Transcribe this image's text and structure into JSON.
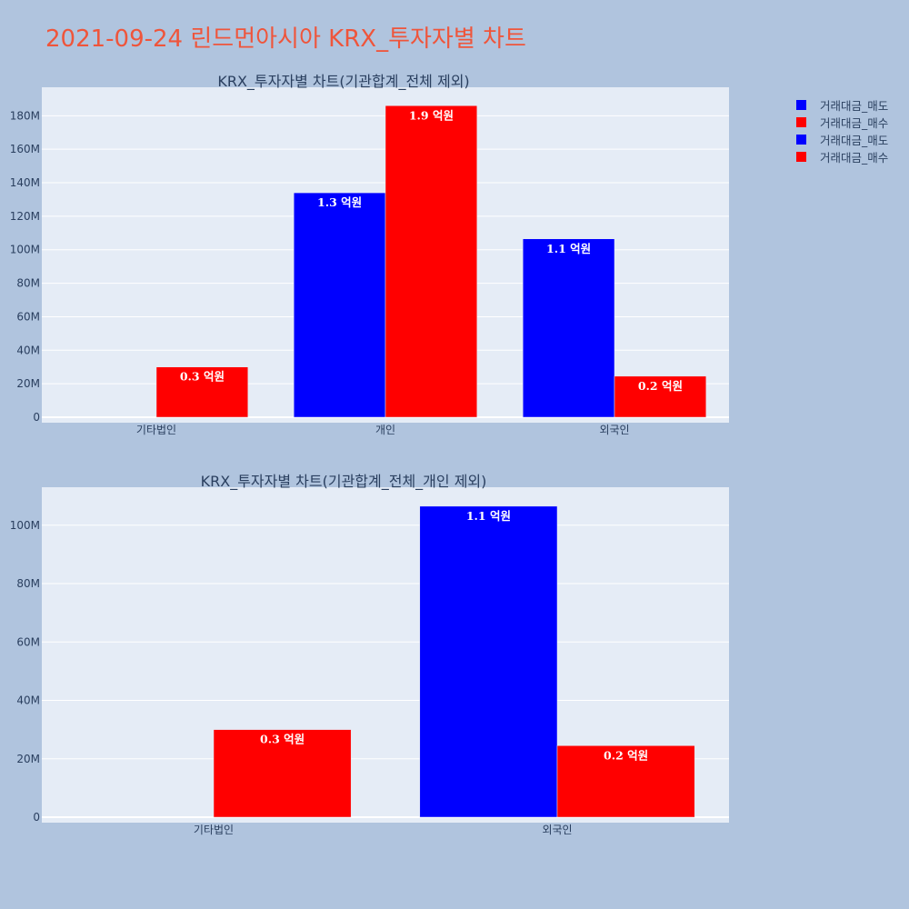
{
  "page_title": "2021-09-24 린드먼아시아 KRX_투자자별 차트",
  "colors": {
    "sell": "#0000ff",
    "buy": "#ff0000",
    "plot_bg": "#e5ecf6",
    "page_bg": "#b0c4de",
    "title": "#ef553b"
  },
  "legend": [
    {
      "label": "거래대금_매도",
      "color": "#0000ff"
    },
    {
      "label": "거래대금_매수",
      "color": "#ff0000"
    },
    {
      "label": "거래대금_매도",
      "color": "#0000ff"
    },
    {
      "label": "거래대금_매수",
      "color": "#ff0000"
    }
  ],
  "chart_data": [
    {
      "type": "bar",
      "title": "KRX_투자자별 차트(기관합계_전체 제외)",
      "categories": [
        "기타법인",
        "개인",
        "외국인"
      ],
      "series": [
        {
          "name": "거래대금_매도",
          "values": [
            0,
            134000000,
            106500000
          ],
          "labels": [
            "",
            "1.3 억원",
            "1.1 억원"
          ]
        },
        {
          "name": "거래대금_매수",
          "values": [
            30000000,
            186000000,
            24500000
          ],
          "labels": [
            "0.3 억원",
            "1.9 억원",
            "0.2 억원"
          ]
        }
      ],
      "ylim": [
        0,
        197000000
      ],
      "yticks": [
        0,
        20000000,
        40000000,
        60000000,
        80000000,
        100000000,
        120000000,
        140000000,
        160000000,
        180000000
      ],
      "ytick_labels": [
        "0",
        "20M",
        "40M",
        "60M",
        "80M",
        "100M",
        "120M",
        "140M",
        "160M",
        "180M"
      ]
    },
    {
      "type": "bar",
      "title": "KRX_투자자별 차트(기관합계_전체_개인 제외)",
      "categories": [
        "기타법인",
        "외국인"
      ],
      "series": [
        {
          "name": "거래대금_매도",
          "values": [
            0,
            106500000
          ],
          "labels": [
            "",
            "1.1 억원"
          ]
        },
        {
          "name": "거래대금_매수",
          "values": [
            30000000,
            24500000
          ],
          "labels": [
            "0.3 억원",
            "0.2 억원"
          ]
        }
      ],
      "ylim": [
        0,
        113000000
      ],
      "yticks": [
        0,
        20000000,
        40000000,
        60000000,
        80000000,
        100000000
      ],
      "ytick_labels": [
        "0",
        "20M",
        "40M",
        "60M",
        "80M",
        "100M"
      ]
    }
  ]
}
